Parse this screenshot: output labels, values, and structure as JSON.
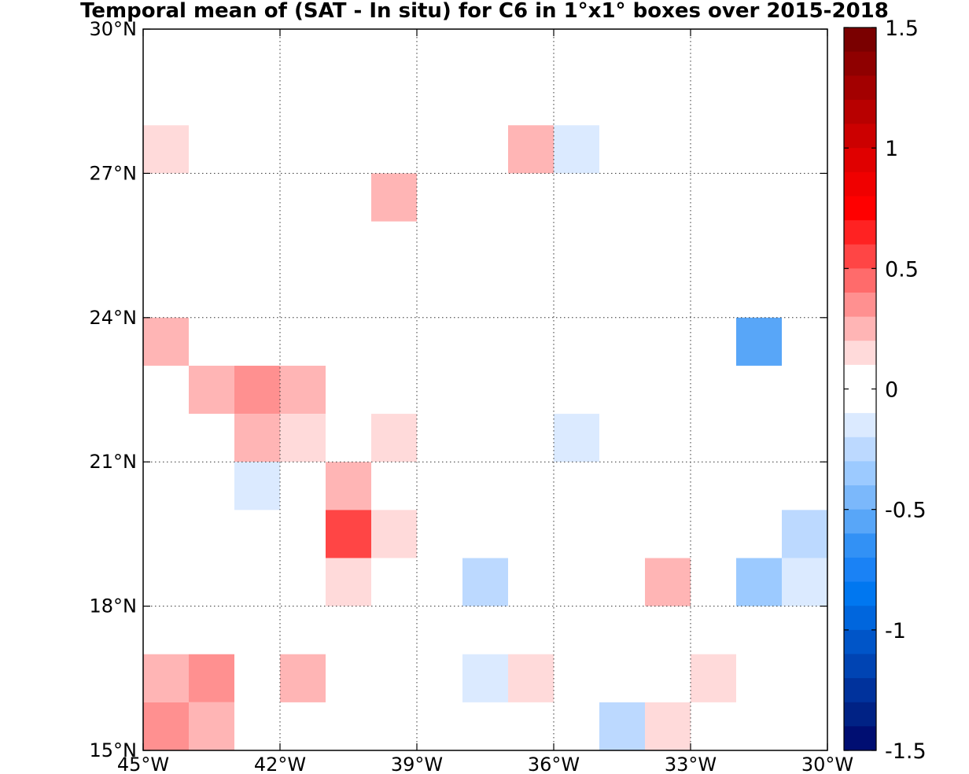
{
  "chart_data": {
    "type": "heatmap",
    "title": "Temporal mean of (SAT - In situ) for C6 in 1°x1° boxes over 2015-2018",
    "xlim": [
      -45,
      -30
    ],
    "ylim": [
      15,
      30
    ],
    "x_ticks": [
      -45,
      -42,
      -39,
      -36,
      -33,
      -30
    ],
    "y_ticks": [
      15,
      18,
      21,
      24,
      27,
      30
    ],
    "x_tick_labels": [
      "45°W",
      "42°W",
      "39°W",
      "36°W",
      "33°W",
      "30°W"
    ],
    "y_tick_labels": [
      "15°N",
      "18°N",
      "21°N",
      "24°N",
      "27°N",
      "30°N"
    ],
    "grid": true,
    "cell_size_deg": 1,
    "colorbar": {
      "range": [
        -1.5,
        1.5
      ],
      "steps": 30,
      "ticks": [
        1.5,
        1,
        0.5,
        0,
        -0.5,
        -1,
        -1.5
      ],
      "tick_labels": [
        "1.5",
        "1",
        "0.5",
        "0",
        "-0.5",
        "-1",
        "-1.5"
      ],
      "colors_top_to_bottom": [
        "#7a0000",
        "#8f0000",
        "#a30000",
        "#b80000",
        "#cc0000",
        "#e00000",
        "#f00000",
        "#ff0000",
        "#ff2222",
        "#ff4545",
        "#ff6b6b",
        "#ff9090",
        "#ffb5b5",
        "#ffdada",
        "#ffffff",
        "#ffffff",
        "#dbeaff",
        "#bcd9ff",
        "#9ccaff",
        "#7bb8fb",
        "#58a6f8",
        "#3291f5",
        "#1a82f5",
        "#0077f0",
        "#0066dd",
        "#0055c8",
        "#0044b3",
        "#00329c",
        "#002285",
        "#000e72"
      ]
    },
    "cells": [
      {
        "lon": -45,
        "lat": 27,
        "value": 0.1
      },
      {
        "lon": -37,
        "lat": 27,
        "value": 0.25
      },
      {
        "lon": -36,
        "lat": 27,
        "value": -0.1
      },
      {
        "lon": -40,
        "lat": 26,
        "value": 0.25
      },
      {
        "lon": -45,
        "lat": 23,
        "value": 0.25
      },
      {
        "lon": -32,
        "lat": 23,
        "value": -0.55
      },
      {
        "lon": -44,
        "lat": 22,
        "value": 0.25
      },
      {
        "lon": -43,
        "lat": 22,
        "value": 0.35
      },
      {
        "lon": -42,
        "lat": 22,
        "value": 0.25
      },
      {
        "lon": -43,
        "lat": 21,
        "value": 0.25
      },
      {
        "lon": -42,
        "lat": 21,
        "value": 0.1
      },
      {
        "lon": -40,
        "lat": 21,
        "value": 0.1
      },
      {
        "lon": -36,
        "lat": 21,
        "value": -0.1
      },
      {
        "lon": -43,
        "lat": 20,
        "value": -0.1
      },
      {
        "lon": -41,
        "lat": 20,
        "value": 0.25
      },
      {
        "lon": -41,
        "lat": 19,
        "value": 0.6
      },
      {
        "lon": -40,
        "lat": 19,
        "value": 0.1
      },
      {
        "lon": -31,
        "lat": 19,
        "value": -0.2
      },
      {
        "lon": -41,
        "lat": 18,
        "value": 0.1
      },
      {
        "lon": -38,
        "lat": 18,
        "value": -0.2
      },
      {
        "lon": -34,
        "lat": 18,
        "value": 0.25
      },
      {
        "lon": -32,
        "lat": 18,
        "value": -0.3
      },
      {
        "lon": -31,
        "lat": 18,
        "value": -0.1
      },
      {
        "lon": -45,
        "lat": 16,
        "value": 0.25
      },
      {
        "lon": -44,
        "lat": 16,
        "value": 0.4
      },
      {
        "lon": -42,
        "lat": 16,
        "value": 0.25
      },
      {
        "lon": -38,
        "lat": 16,
        "value": -0.1
      },
      {
        "lon": -37,
        "lat": 16,
        "value": 0.1
      },
      {
        "lon": -33,
        "lat": 16,
        "value": 0.1
      },
      {
        "lon": -45,
        "lat": 15,
        "value": 0.35
      },
      {
        "lon": -44,
        "lat": 15,
        "value": 0.25
      },
      {
        "lon": -35,
        "lat": 15,
        "value": -0.2
      },
      {
        "lon": -34,
        "lat": 15,
        "value": 0.1
      }
    ]
  }
}
